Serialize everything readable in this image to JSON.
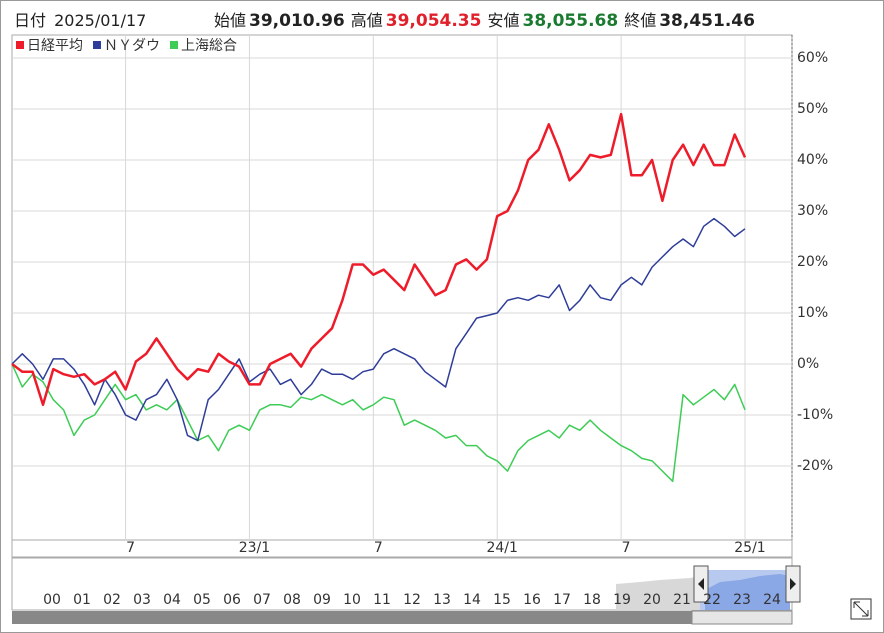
{
  "header": {
    "date_label": "日付",
    "date": "2025/01/17",
    "items": [
      {
        "label": "始値",
        "value": "39,010.96",
        "color": "#222222"
      },
      {
        "label": "高値",
        "value": "39,054.35",
        "color": "#e0202a"
      },
      {
        "label": "安値",
        "value": "38,055.68",
        "color": "#1a7a30"
      },
      {
        "label": "終値",
        "value": "38,451.46",
        "color": "#222222"
      }
    ]
  },
  "chart_data": {
    "type": "line",
    "categories": [
      null,
      null,
      null,
      null,
      null,
      null,
      null,
      null,
      null,
      null,
      null,
      "7",
      null,
      null,
      null,
      null,
      null,
      null,
      null,
      null,
      null,
      null,
      null,
      "23/1",
      null,
      null,
      null,
      null,
      null,
      null,
      null,
      null,
      null,
      null,
      null,
      "7",
      null,
      null,
      null,
      null,
      null,
      null,
      null,
      null,
      null,
      null,
      null,
      "24/1",
      null,
      null,
      null,
      null,
      null,
      null,
      null,
      null,
      null,
      null,
      null,
      "7",
      null,
      null,
      null,
      null,
      null,
      null,
      null,
      null,
      null,
      null,
      null,
      "25/1"
    ],
    "series": [
      {
        "name": "日経平均",
        "color": "#ee1c2a",
        "values": [
          0,
          -1.5,
          -1.5,
          -8,
          -1,
          -2,
          -2.5,
          -2,
          -4,
          -3,
          -1.5,
          -5,
          0.5,
          2,
          5,
          2,
          -1,
          -3,
          -1,
          -1.5,
          2,
          0.5,
          -0.5,
          -4,
          -4,
          0,
          1,
          2,
          -0.5,
          3,
          5,
          7,
          12.5,
          19.5,
          19.5,
          17.5,
          18.5,
          16.5,
          14.5,
          19.5,
          16.5,
          13.5,
          14.5,
          19.5,
          20.5,
          18.5,
          20.5,
          29,
          30,
          34,
          40,
          42,
          47,
          42,
          36,
          38,
          41,
          40.5,
          41,
          49,
          37,
          37,
          40,
          32,
          40,
          43,
          39,
          43,
          39,
          39,
          45,
          40.5
        ]
      },
      {
        "name": "ＮＹダウ",
        "color": "#2e3d99",
        "values": [
          0,
          2,
          0,
          -3,
          1,
          1,
          -1,
          -4,
          -8,
          -3,
          -6,
          -10,
          -11,
          -7,
          -6,
          -3,
          -7,
          -14,
          -15,
          -7,
          -5,
          -2,
          1,
          -3.5,
          -2,
          -1,
          -4,
          -3,
          -6,
          -4,
          -1,
          -2,
          -2,
          -3,
          -1.5,
          -1,
          2,
          3,
          2,
          1,
          -1.5,
          -3,
          -4.5,
          3,
          6,
          9,
          9.5,
          10,
          12.5,
          13,
          12.5,
          13.5,
          13,
          15.5,
          10.5,
          12.5,
          15.5,
          13,
          12.5,
          15.5,
          17,
          15.5,
          19,
          21,
          23,
          24.5,
          23,
          27,
          28.5,
          27,
          25,
          26.5
        ]
      },
      {
        "name": "上海総合",
        "color": "#3dcc55",
        "values": [
          0,
          -4.5,
          -2,
          -3.5,
          -7,
          -9,
          -14,
          -11,
          -10,
          -7,
          -4,
          -7,
          -6,
          -9,
          -8,
          -9,
          -7,
          -11,
          -15,
          -14,
          -17,
          -13,
          -12,
          -13,
          -9,
          -8,
          -8,
          -8.5,
          -6.5,
          -7,
          -6,
          -7,
          -8,
          -7,
          -9,
          -8,
          -6.5,
          -7,
          -12,
          -11,
          -12,
          -13,
          -14.5,
          -14,
          -16,
          -16,
          -18,
          -19,
          -21,
          -17,
          -15,
          -14,
          -13,
          -14.5,
          -12,
          -13,
          -11,
          -13,
          -14.5,
          -16,
          -17,
          -18.5,
          -19,
          -21,
          -23,
          -6,
          -8,
          -6.5,
          -5,
          -7,
          -4,
          -9
        ]
      }
    ],
    "ylim": [
      -34.5,
      64.5
    ],
    "yticks": [
      {
        "value": 60,
        "label": "60%"
      },
      {
        "value": 50,
        "label": "50%"
      },
      {
        "value": 40,
        "label": "40%"
      },
      {
        "value": 30,
        "label": "30%"
      },
      {
        "value": 20,
        "label": "20%"
      },
      {
        "value": 10,
        "label": "10%"
      },
      {
        "value": 0,
        "label": "0%"
      },
      {
        "value": -10,
        "label": "-10%"
      },
      {
        "value": -20,
        "label": "-20%"
      }
    ],
    "grid": true
  },
  "navigator": {
    "labels": [
      "00",
      "01",
      "02",
      "03",
      "04",
      "05",
      "06",
      "07",
      "08",
      "09",
      "10",
      "11",
      "12",
      "13",
      "14",
      "15",
      "16",
      "17",
      "18",
      "19",
      "20",
      "21",
      "22",
      "23",
      "24"
    ]
  }
}
